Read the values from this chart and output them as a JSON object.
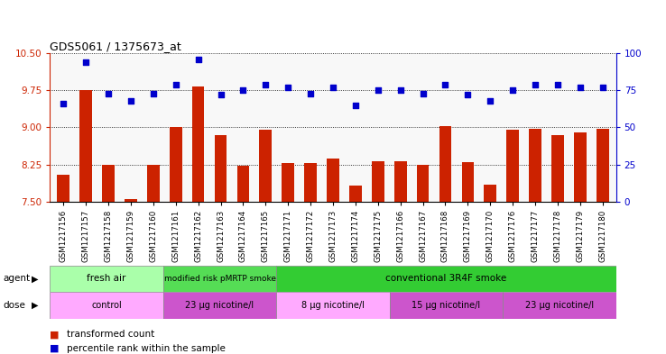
{
  "title": "GDS5061 / 1375673_at",
  "samples": [
    "GSM1217156",
    "GSM1217157",
    "GSM1217158",
    "GSM1217159",
    "GSM1217160",
    "GSM1217161",
    "GSM1217162",
    "GSM1217163",
    "GSM1217164",
    "GSM1217165",
    "GSM1217171",
    "GSM1217172",
    "GSM1217173",
    "GSM1217174",
    "GSM1217175",
    "GSM1217166",
    "GSM1217167",
    "GSM1217168",
    "GSM1217169",
    "GSM1217170",
    "GSM1217176",
    "GSM1217177",
    "GSM1217178",
    "GSM1217179",
    "GSM1217180"
  ],
  "bar_values": [
    8.05,
    9.75,
    8.25,
    7.55,
    8.25,
    9.0,
    9.82,
    8.85,
    8.22,
    8.95,
    8.28,
    8.28,
    8.38,
    7.82,
    8.32,
    8.32,
    8.25,
    9.02,
    8.3,
    7.85,
    8.95,
    8.98,
    8.85,
    8.9,
    8.98
  ],
  "dot_values": [
    66,
    94,
    73,
    68,
    73,
    79,
    96,
    72,
    75,
    79,
    77,
    73,
    77,
    65,
    75,
    75,
    73,
    79,
    72,
    68,
    75,
    79,
    79,
    77,
    77
  ],
  "ylim_left": [
    7.5,
    10.5
  ],
  "ylim_right": [
    0,
    100
  ],
  "yticks_left": [
    7.5,
    8.25,
    9.0,
    9.75,
    10.5
  ],
  "yticks_right": [
    0,
    25,
    50,
    75,
    100
  ],
  "bar_color": "#cc2200",
  "dot_color": "#0000cc",
  "agent_regions": [
    {
      "label": "fresh air",
      "start": 0,
      "end": 5,
      "color": "#aaffaa"
    },
    {
      "label": "modified risk pMRTP smoke",
      "start": 5,
      "end": 10,
      "color": "#55dd55"
    },
    {
      "label": "conventional 3R4F smoke",
      "start": 10,
      "end": 25,
      "color": "#33cc33"
    }
  ],
  "dose_regions": [
    {
      "label": "control",
      "start": 0,
      "end": 5,
      "color": "#ffaaff"
    },
    {
      "label": "23 µg nicotine/l",
      "start": 5,
      "end": 10,
      "color": "#cc55cc"
    },
    {
      "label": "8 µg nicotine/l",
      "start": 10,
      "end": 15,
      "color": "#ffaaff"
    },
    {
      "label": "15 µg nicotine/l",
      "start": 15,
      "end": 20,
      "color": "#cc55cc"
    },
    {
      "label": "23 µg nicotine/l",
      "start": 20,
      "end": 25,
      "color": "#cc55cc"
    }
  ],
  "legend_bar_label": "transformed count",
  "legend_dot_label": "percentile rank within the sample",
  "agent_label": "agent",
  "dose_label": "dose",
  "bg_color": "#ffffff"
}
